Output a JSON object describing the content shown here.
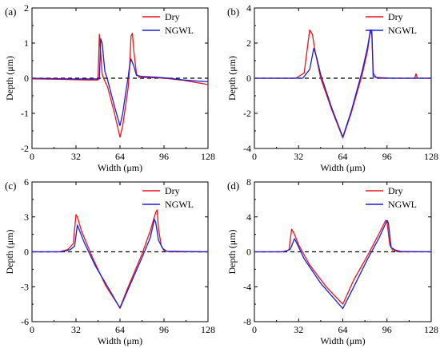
{
  "colors": {
    "dry": "#e8151b",
    "ngwl": "#1a1fd6",
    "zero_line": "#000000"
  },
  "chart_data": [
    {
      "type": "line",
      "panel_label": "(a)",
      "xlabel": "Width (μm)",
      "ylabel": "Depth (μm)",
      "xlim": [
        0,
        128
      ],
      "ylim": [
        -2,
        2
      ],
      "xticks": [
        0,
        32,
        64,
        96,
        128
      ],
      "yticks": [
        -2,
        -1,
        0,
        1,
        2
      ],
      "legend": {
        "placement": "top-right",
        "entries": [
          "Dry",
          "NGWL"
        ]
      },
      "zero_line": true,
      "series": [
        {
          "name": "Dry",
          "color": "#e8151b",
          "points": [
            [
              0,
              -0.02
            ],
            [
              20,
              -0.03
            ],
            [
              40,
              -0.05
            ],
            [
              48,
              -0.05
            ],
            [
              49,
              1.25
            ],
            [
              50,
              0.7
            ],
            [
              51,
              0.12
            ],
            [
              52,
              0.0
            ],
            [
              55,
              -0.25
            ],
            [
              60,
              -1.0
            ],
            [
              64,
              -1.68
            ],
            [
              66,
              -1.35
            ],
            [
              68,
              -0.8
            ],
            [
              70,
              -0.25
            ],
            [
              71,
              0.3
            ],
            [
              72,
              1.2
            ],
            [
              73,
              1.28
            ],
            [
              74,
              0.8
            ],
            [
              76,
              0.12
            ],
            [
              78,
              0.02
            ],
            [
              85,
              0.02
            ],
            [
              96,
              0.0
            ],
            [
              110,
              -0.06
            ],
            [
              128,
              -0.18
            ]
          ]
        },
        {
          "name": "NGWL",
          "color": "#1a1fd6",
          "points": [
            [
              0,
              0.0
            ],
            [
              30,
              -0.02
            ],
            [
              49,
              -0.02
            ],
            [
              50,
              1.12
            ],
            [
              51,
              1.0
            ],
            [
              53,
              0.2
            ],
            [
              55,
              -0.05
            ],
            [
              60,
              -0.8
            ],
            [
              64,
              -1.35
            ],
            [
              66,
              -1.0
            ],
            [
              68,
              -0.45
            ],
            [
              70,
              0.05
            ],
            [
              71,
              0.35
            ],
            [
              72,
              0.55
            ],
            [
              74,
              0.35
            ],
            [
              76,
              0.08
            ],
            [
              80,
              0.05
            ],
            [
              90,
              0.03
            ],
            [
              100,
              0.0
            ],
            [
              110,
              -0.05
            ],
            [
              120,
              -0.08
            ],
            [
              128,
              -0.1
            ]
          ]
        }
      ]
    },
    {
      "type": "line",
      "panel_label": "(b)",
      "xlabel": "Width (μm)",
      "ylabel": "Depth (μm)",
      "xlim": [
        0,
        128
      ],
      "ylim": [
        -4,
        4
      ],
      "xticks": [
        0,
        32,
        64,
        96,
        128
      ],
      "yticks": [
        -4,
        -2,
        0,
        2,
        4
      ],
      "legend": {
        "placement": "top-right",
        "entries": [
          "Dry",
          "NGWL"
        ]
      },
      "zero_line": true,
      "series": [
        {
          "name": "Dry",
          "color": "#e8151b",
          "points": [
            [
              0,
              0.0
            ],
            [
              30,
              0.0
            ],
            [
              36,
              0.3
            ],
            [
              38,
              1.5
            ],
            [
              40,
              2.75
            ],
            [
              42,
              2.5
            ],
            [
              44,
              1.5
            ],
            [
              48,
              0.0
            ],
            [
              56,
              -1.8
            ],
            [
              64,
              -3.4
            ],
            [
              70,
              -2.0
            ],
            [
              78,
              0.2
            ],
            [
              82,
              1.6
            ],
            [
              84,
              2.7
            ],
            [
              85,
              2.75
            ],
            [
              86,
              0.3
            ],
            [
              88,
              0.05
            ],
            [
              100,
              0.0
            ],
            [
              116,
              0.0
            ],
            [
              117,
              0.25
            ],
            [
              118,
              0.0
            ],
            [
              128,
              0.0
            ]
          ]
        },
        {
          "name": "NGWL",
          "color": "#1a1fd6",
          "points": [
            [
              0,
              0.0
            ],
            [
              35,
              0.0
            ],
            [
              40,
              0.5
            ],
            [
              43,
              1.7
            ],
            [
              45,
              1.2
            ],
            [
              48,
              0.2
            ],
            [
              56,
              -1.7
            ],
            [
              64,
              -3.35
            ],
            [
              70,
              -1.9
            ],
            [
              78,
              0.4
            ],
            [
              82,
              1.8
            ],
            [
              84,
              2.75
            ],
            [
              85,
              2.5
            ],
            [
              86,
              0.1
            ],
            [
              90,
              0.0
            ],
            [
              128,
              0.0
            ]
          ]
        }
      ]
    },
    {
      "type": "line",
      "panel_label": "(c)",
      "xlabel": "Width (μm)",
      "ylabel": "Depth (μm)",
      "xlim": [
        0,
        128
      ],
      "ylim": [
        -6,
        6
      ],
      "xticks": [
        0,
        32,
        64,
        96,
        128
      ],
      "yticks": [
        -6,
        -3,
        0,
        3,
        6
      ],
      "legend": {
        "placement": "top-right",
        "entries": [
          "Dry",
          "NGWL"
        ]
      },
      "zero_line": true,
      "series": [
        {
          "name": "Dry",
          "color": "#e8151b",
          "points": [
            [
              0,
              0.0
            ],
            [
              20,
              0.0
            ],
            [
              26,
              0.2
            ],
            [
              30,
              0.7
            ],
            [
              32,
              3.2
            ],
            [
              33,
              3.0
            ],
            [
              36,
              1.8
            ],
            [
              44,
              -0.5
            ],
            [
              54,
              -3.0
            ],
            [
              64,
              -4.8
            ],
            [
              70,
              -3.0
            ],
            [
              80,
              -0.2
            ],
            [
              86,
              1.8
            ],
            [
              90,
              3.4
            ],
            [
              91,
              3.6
            ],
            [
              92,
              2.0
            ],
            [
              94,
              0.5
            ],
            [
              96,
              0.1
            ],
            [
              100,
              0.0
            ],
            [
              128,
              0.0
            ]
          ]
        },
        {
          "name": "NGWL",
          "color": "#1a1fd6",
          "points": [
            [
              0,
              0.0
            ],
            [
              22,
              0.0
            ],
            [
              28,
              0.2
            ],
            [
              31,
              0.5
            ],
            [
              33,
              2.3
            ],
            [
              34,
              2.0
            ],
            [
              38,
              0.8
            ],
            [
              46,
              -1.2
            ],
            [
              56,
              -3.2
            ],
            [
              64,
              -4.85
            ],
            [
              70,
              -3.2
            ],
            [
              80,
              -0.5
            ],
            [
              86,
              1.2
            ],
            [
              89,
              2.8
            ],
            [
              90,
              2.5
            ],
            [
              92,
              1.0
            ],
            [
              95,
              0.3
            ],
            [
              98,
              0.05
            ],
            [
              128,
              0.0
            ]
          ]
        }
      ]
    },
    {
      "type": "line",
      "panel_label": "(d)",
      "xlabel": "Width (μm)",
      "ylabel": "Depth (μm)",
      "xlim": [
        0,
        128
      ],
      "ylim": [
        -8,
        8
      ],
      "xticks": [
        0,
        32,
        64,
        96,
        128
      ],
      "yticks": [
        -8,
        -4,
        0,
        4,
        8
      ],
      "legend": {
        "placement": "top-right",
        "entries": [
          "Dry",
          "NGWL"
        ]
      },
      "zero_line": true,
      "series": [
        {
          "name": "Dry",
          "color": "#e8151b",
          "points": [
            [
              0,
              0.0
            ],
            [
              20,
              0.0
            ],
            [
              25,
              0.2
            ],
            [
              27,
              2.6
            ],
            [
              29,
              2.0
            ],
            [
              32,
              0.8
            ],
            [
              40,
              -1.5
            ],
            [
              52,
              -4.0
            ],
            [
              64,
              -6.0
            ],
            [
              72,
              -3.2
            ],
            [
              82,
              -0.4
            ],
            [
              90,
              2.0
            ],
            [
              95,
              3.6
            ],
            [
              96,
              3.4
            ],
            [
              98,
              0.8
            ],
            [
              100,
              0.2
            ],
            [
              104,
              0.0
            ],
            [
              128,
              0.0
            ]
          ]
        },
        {
          "name": "NGWL",
          "color": "#1a1fd6",
          "points": [
            [
              0,
              0.0
            ],
            [
              22,
              0.0
            ],
            [
              26,
              0.3
            ],
            [
              29,
              1.5
            ],
            [
              31,
              0.9
            ],
            [
              36,
              -0.8
            ],
            [
              48,
              -3.6
            ],
            [
              64,
              -6.5
            ],
            [
              72,
              -4.0
            ],
            [
              82,
              -0.8
            ],
            [
              90,
              1.5
            ],
            [
              96,
              3.6
            ],
            [
              97,
              3.3
            ],
            [
              99,
              0.5
            ],
            [
              102,
              0.2
            ],
            [
              106,
              0.05
            ],
            [
              128,
              0.0
            ]
          ]
        }
      ]
    }
  ]
}
